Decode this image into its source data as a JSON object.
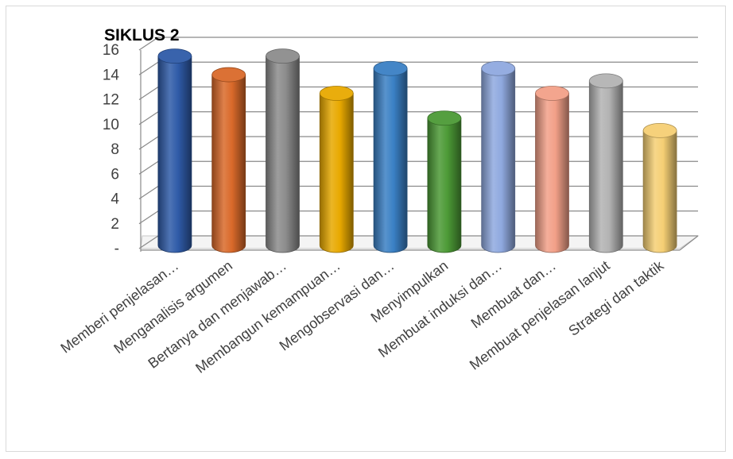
{
  "chart_data": {
    "type": "bar",
    "style": "3d-cylinder",
    "title": "SIKLUS 2",
    "xlabel": "",
    "ylabel": "",
    "ylim": [
      0,
      16
    ],
    "yticks": [
      {
        "value": 0,
        "label": "-"
      },
      {
        "value": 2,
        "label": "2"
      },
      {
        "value": 4,
        "label": "4"
      },
      {
        "value": 6,
        "label": "6"
      },
      {
        "value": 8,
        "label": "8"
      },
      {
        "value": 10,
        "label": "10"
      },
      {
        "value": 12,
        "label": "12"
      },
      {
        "value": 14,
        "label": "14"
      },
      {
        "value": 16,
        "label": "16"
      }
    ],
    "grid": true,
    "legend": "none",
    "categories": [
      "Memberi penjelasan…",
      "Menganalisis argumen",
      "Bertanya dan menjawab…",
      "Membangun kemampuan…",
      "Mengobservasi dan…",
      "Menyimpulkan",
      "Membuat induksi dan…",
      "Membuat dan…",
      "Membuat penjelasan lanjut",
      "Strategi dan taktik"
    ],
    "values": [
      15,
      13.5,
      15,
      12,
      14,
      10,
      14,
      12,
      13,
      9
    ],
    "colors": [
      "#2f5ba8",
      "#d9692a",
      "#8c8c8c",
      "#e8a900",
      "#3a80c4",
      "#4c9a36",
      "#8fa9df",
      "#f2a088",
      "#b3b3b3",
      "#f5cf74"
    ]
  }
}
